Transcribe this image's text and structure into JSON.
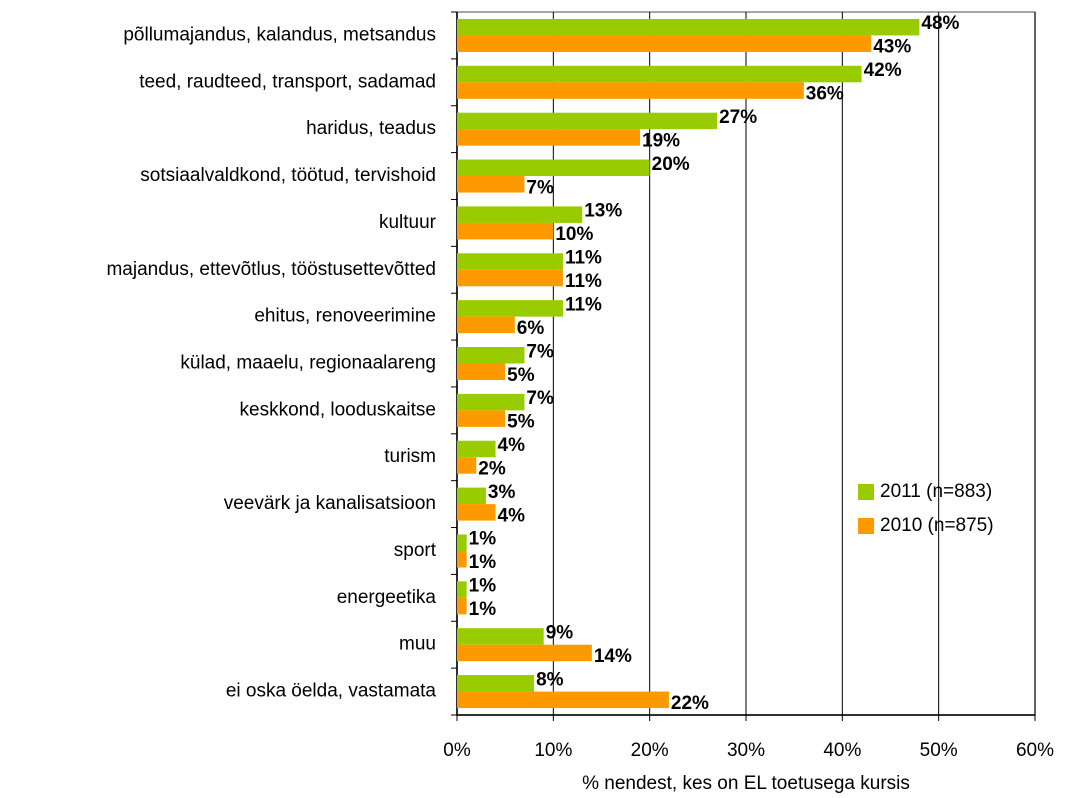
{
  "chart_data": {
    "type": "hbar",
    "categories": [
      "põllumajandus, kalandus, metsandus",
      "teed, raudteed, transport, sadamad",
      "haridus, teadus",
      "sotsiaalvaldkond, töötud, tervishoid",
      "kultuur",
      "majandus, ettevõtlus, tööstusettevõtted",
      "ehitus, renoveerimine",
      "külad, maaelu, regionaalareng",
      "keskkond, looduskaitse",
      "turism",
      "veevärk ja kanalisatsioon",
      "sport",
      "energeetika",
      "muu",
      "ei oska öelda, vastamata"
    ],
    "series": [
      {
        "name": "2011 (n=883)",
        "color": "#99cc00",
        "values": [
          48,
          42,
          27,
          20,
          13,
          11,
          11,
          7,
          7,
          4,
          3,
          1,
          1,
          9,
          8
        ],
        "value_labels": [
          "48%",
          "42%",
          "27%",
          "20%",
          "13%",
          "11%",
          "11%",
          "7%",
          "7%",
          "4%",
          "3%",
          "1%",
          "1%",
          "9%",
          "8%"
        ]
      },
      {
        "name": "2010 (n=875)",
        "color": "#ff9900",
        "values": [
          43,
          36,
          19,
          7,
          10,
          11,
          6,
          5,
          5,
          2,
          4,
          1,
          1,
          14,
          22
        ],
        "value_labels": [
          "43%",
          "36%",
          "19%",
          "7%",
          "10%",
          "11%",
          "6%",
          "5%",
          "5%",
          "2%",
          "4%",
          "1%",
          "1%",
          "14%",
          "22%"
        ]
      }
    ],
    "xlabel": "% nendest, kes on EL toetusega kursis",
    "xlim": [
      0,
      60
    ],
    "xticks": [
      {
        "value": 0,
        "label": "0%"
      },
      {
        "value": 10,
        "label": "10%"
      },
      {
        "value": 20,
        "label": "20%"
      },
      {
        "value": 30,
        "label": "30%"
      },
      {
        "value": 40,
        "label": "40%"
      },
      {
        "value": 50,
        "label": "50%"
      },
      {
        "value": 60,
        "label": "60%"
      }
    ],
    "grid": true,
    "legend": "right"
  }
}
